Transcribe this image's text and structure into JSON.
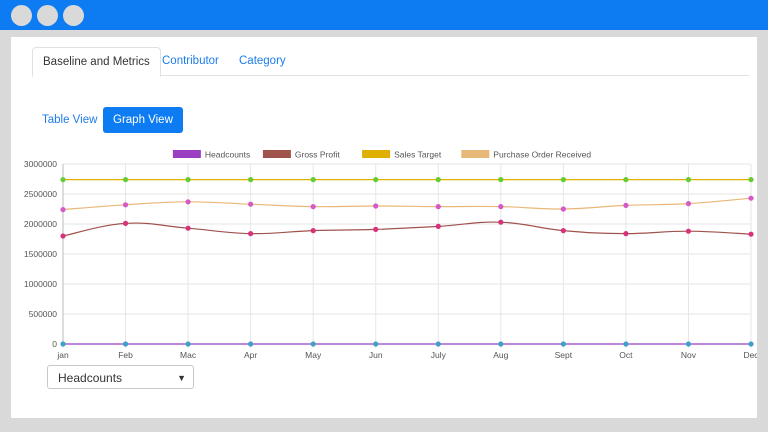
{
  "tabs": [
    {
      "label": "Baseline and Metrics",
      "active": true
    },
    {
      "label": "Contributor",
      "active": false
    },
    {
      "label": "Category",
      "active": false
    }
  ],
  "view_buttons": {
    "table": "Table View",
    "graph": "Graph View"
  },
  "metric_select": {
    "value": "Headcounts"
  },
  "chart_data": {
    "type": "line",
    "categories": [
      "jan",
      "Feb",
      "Mac",
      "Apr",
      "May",
      "Jun",
      "July",
      "Aug",
      "Sept",
      "Oct",
      "Nov",
      "Dec"
    ],
    "ylim": [
      0,
      3000000
    ],
    "yticks": [
      "3000000",
      "2500000",
      "2000000",
      "1500000",
      "1000000",
      "500000",
      "0"
    ],
    "grid": true,
    "legend_position": "top",
    "series": [
      {
        "name": "Headcounts",
        "color": "#9b3fc2",
        "point_color": "#3fa0c8",
        "values": [
          0,
          0,
          0,
          0,
          0,
          0,
          0,
          0,
          0,
          0,
          0,
          0
        ]
      },
      {
        "name": "Gross Profit",
        "color": "#a0524d",
        "point_color": "#d6337a",
        "values": [
          1800000,
          2010000,
          1930000,
          1840000,
          1890000,
          1910000,
          1960000,
          2030000,
          1890000,
          1840000,
          1880000,
          1830000
        ]
      },
      {
        "name": "Sales Target",
        "color": "#e0b000",
        "point_color": "#66cc33",
        "values": [
          2740000,
          2740000,
          2740000,
          2740000,
          2740000,
          2740000,
          2740000,
          2740000,
          2740000,
          2740000,
          2740000,
          2740000
        ]
      },
      {
        "name": "Purchase Order Received",
        "color": "#e8b878",
        "point_color": "#d659c8",
        "values": [
          2240000,
          2320000,
          2370000,
          2330000,
          2290000,
          2300000,
          2290000,
          2290000,
          2250000,
          2310000,
          2340000,
          2430000
        ]
      }
    ]
  }
}
